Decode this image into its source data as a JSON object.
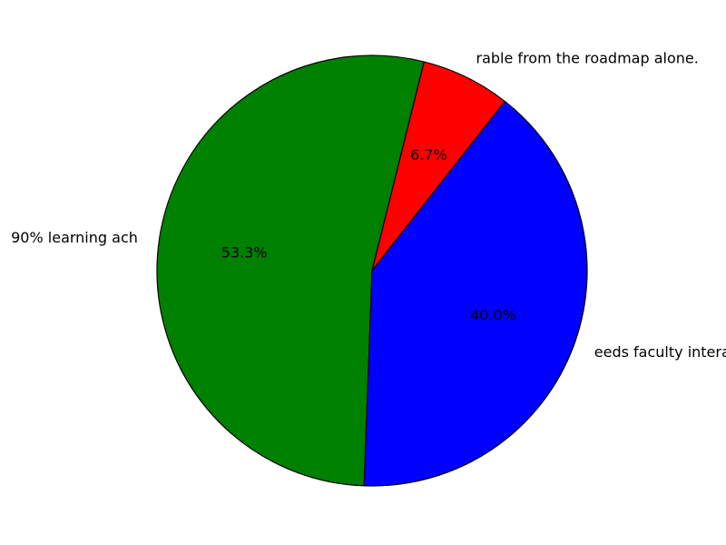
{
  "chart_data": {
    "type": "pie",
    "slices": [
      {
        "label": "90% learning ach",
        "value": 53.3,
        "pct_label": "53.3%",
        "color": "#008000"
      },
      {
        "label": "eeds faculty interaction",
        "value": 40.0,
        "pct_label": "40.0%",
        "color": "#0000ff"
      },
      {
        "label": "rable from the roadmap alone.",
        "value": 6.7,
        "pct_label": "6.7%",
        "color": "#ff0000"
      }
    ],
    "start_angle_deg": 76,
    "direction": "counterclockwise",
    "edge_color": "#000000",
    "legend": "none"
  }
}
